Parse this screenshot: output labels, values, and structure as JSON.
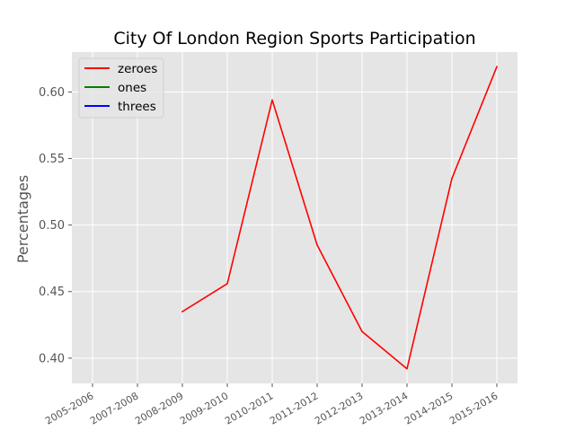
{
  "chart_data": {
    "type": "line",
    "title": "City Of London Region Sports Participation",
    "xlabel": "",
    "ylabel": "Percentages",
    "categories": [
      "2005-2006",
      "2007-2008",
      "2008-2009",
      "2009-2010",
      "2010-2011",
      "2011-2012",
      "2012-2013",
      "2013-2014",
      "2014-2015",
      "2015-2016"
    ],
    "series": [
      {
        "name": "zeroes",
        "color": "#ff0000",
        "values": [
          null,
          null,
          0.435,
          0.456,
          0.594,
          0.485,
          0.42,
          0.392,
          0.535,
          0.619
        ]
      },
      {
        "name": "ones",
        "color": "#008000",
        "values": [
          null,
          null,
          null,
          null,
          null,
          null,
          null,
          null,
          null,
          null
        ]
      },
      {
        "name": "threes",
        "color": "#0000ff",
        "values": [
          null,
          null,
          null,
          null,
          null,
          null,
          null,
          null,
          null,
          null
        ]
      }
    ],
    "yticks": [
      0.4,
      0.45,
      0.5,
      0.55,
      0.6
    ],
    "ylim": [
      0.381,
      0.63
    ],
    "grid": true,
    "legend_position": "upper-left",
    "style": {
      "plot_background": "#e5e5e5",
      "grid_color": "#ffffff"
    }
  }
}
